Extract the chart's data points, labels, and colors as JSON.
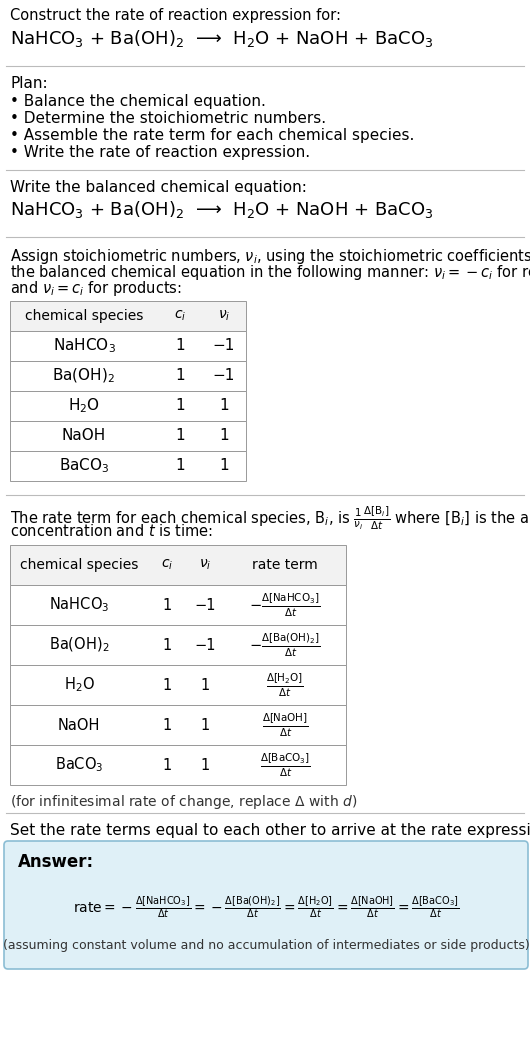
{
  "bg_color": "#ffffff",
  "title_line1": "Construct the rate of reaction expression for:",
  "reaction_equation": "NaHCO$_3$ + Ba(OH)$_2$  ⟶  H$_2$O + NaOH + BaCO$_3$",
  "plan_header": "Plan:",
  "plan_items": [
    "• Balance the chemical equation.",
    "• Determine the stoichiometric numbers.",
    "• Assemble the rate term for each chemical species.",
    "• Write the rate of reaction expression."
  ],
  "balanced_header": "Write the balanced chemical equation:",
  "balanced_eq": "NaHCO$_3$ + Ba(OH)$_2$  ⟶  H$_2$O + NaOH + BaCO$_3$",
  "stoich_intro_parts": [
    "Assign stoichiometric numbers, $\\nu_i$, using the stoichiometric coefficients, $c_i$, from",
    "the balanced chemical equation in the following manner: $\\nu_i = -c_i$ for reactants",
    "and $\\nu_i = c_i$ for products:"
  ],
  "table1_headers": [
    "chemical species",
    "$c_i$",
    "$\\nu_i$"
  ],
  "table1_rows": [
    [
      "NaHCO$_3$",
      "1",
      "−1"
    ],
    [
      "Ba(OH)$_2$",
      "1",
      "−1"
    ],
    [
      "H$_2$O",
      "1",
      "1"
    ],
    [
      "NaOH",
      "1",
      "1"
    ],
    [
      "BaCO$_3$",
      "1",
      "1"
    ]
  ],
  "rate_intro_parts": [
    "The rate term for each chemical species, B$_i$, is $\\frac{1}{\\nu_i}\\frac{\\Delta[\\mathrm{B}_i]}{\\Delta t}$ where [B$_i$] is the amount",
    "concentration and $t$ is time:"
  ],
  "table2_headers": [
    "chemical species",
    "$c_i$",
    "$\\nu_i$",
    "rate term"
  ],
  "table2_rows": [
    [
      "NaHCO$_3$",
      "1",
      "−1",
      "$-\\frac{\\Delta[\\mathrm{NaHCO_3}]}{\\Delta t}$"
    ],
    [
      "Ba(OH)$_2$",
      "1",
      "−1",
      "$-\\frac{\\Delta[\\mathrm{Ba(OH)_2}]}{\\Delta t}$"
    ],
    [
      "H$_2$O",
      "1",
      "1",
      "$\\frac{\\Delta[\\mathrm{H_2O}]}{\\Delta t}$"
    ],
    [
      "NaOH",
      "1",
      "1",
      "$\\frac{\\Delta[\\mathrm{NaOH}]}{\\Delta t}$"
    ],
    [
      "BaCO$_3$",
      "1",
      "1",
      "$\\frac{\\Delta[\\mathrm{BaCO_3}]}{\\Delta t}$"
    ]
  ],
  "infinitesimal_note": "(for infinitesimal rate of change, replace Δ with $d$)",
  "set_rate_text": "Set the rate terms equal to each other to arrive at the rate expression:",
  "answer_label": "Answer:",
  "answer_box_color": "#dff0f7",
  "answer_box_border": "#8bbdd4",
  "rate_expression": "$\\mathrm{rate} = -\\frac{\\Delta[\\mathrm{NaHCO_3}]}{\\Delta t} = -\\frac{\\Delta[\\mathrm{Ba(OH)_2}]}{\\Delta t} = \\frac{\\Delta[\\mathrm{H_2O}]}{\\Delta t} = \\frac{\\Delta[\\mathrm{NaOH}]}{\\Delta t} = \\frac{\\Delta[\\mathrm{BaCO_3}]}{\\Delta t}$",
  "answer_note": "(assuming constant volume and no accumulation of intermediates or side products)"
}
